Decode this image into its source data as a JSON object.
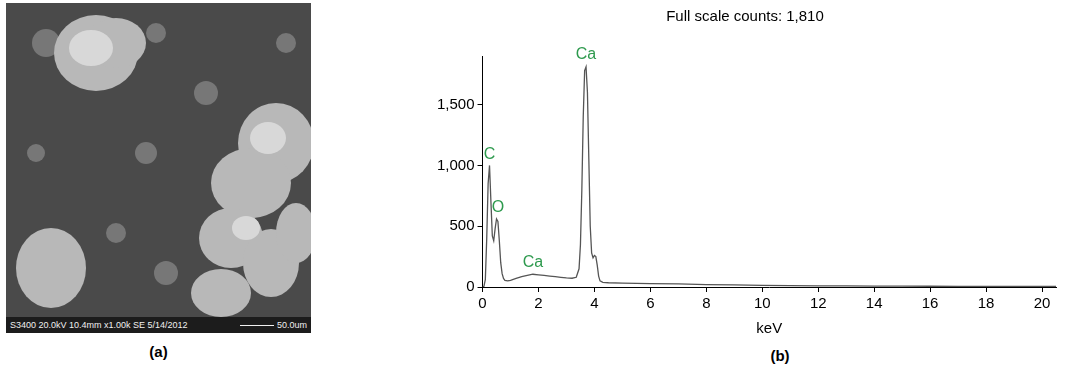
{
  "image": {
    "caption": "S3400 20.0kV 10.4mm x1.00k SE 5/14/2012",
    "scale_bar": "50.0um",
    "panel_label": "(a)"
  },
  "chart_data": {
    "type": "line",
    "title": "Full scale counts: 1,810",
    "x_label": "keV",
    "panel_label": "(b)",
    "x": [
      0,
      0.05,
      0.1,
      0.15,
      0.2,
      0.25,
      0.3,
      0.35,
      0.4,
      0.45,
      0.5,
      0.55,
      0.6,
      0.65,
      0.7,
      0.75,
      0.8,
      0.9,
      1.0,
      1.2,
      1.4,
      1.6,
      1.8,
      2.0,
      2.2,
      2.4,
      2.6,
      2.8,
      3.0,
      3.2,
      3.35,
      3.45,
      3.5,
      3.55,
      3.6,
      3.65,
      3.7,
      3.75,
      3.8,
      3.85,
      3.9,
      3.95,
      4.0,
      4.05,
      4.1,
      4.15,
      4.2,
      4.3,
      4.5,
      5,
      6,
      7,
      8,
      9,
      10,
      11,
      12,
      13,
      14,
      15,
      16,
      17,
      18,
      19,
      20,
      20.5
    ],
    "values": [
      0,
      5,
      60,
      400,
      850,
      1000,
      700,
      420,
      380,
      480,
      560,
      540,
      380,
      200,
      110,
      70,
      55,
      50,
      55,
      70,
      85,
      95,
      105,
      100,
      95,
      90,
      85,
      80,
      75,
      72,
      80,
      150,
      350,
      800,
      1400,
      1780,
      1810,
      1600,
      1050,
      500,
      280,
      240,
      260,
      250,
      180,
      90,
      50,
      38,
      35,
      32,
      28,
      25,
      20,
      17,
      14,
      12,
      10,
      9,
      8,
      7,
      6,
      5,
      5,
      4,
      4,
      4
    ],
    "color": "#555555",
    "xlim": [
      0,
      20.5
    ],
    "xticks": [
      0,
      2,
      4,
      6,
      8,
      10,
      12,
      14,
      16,
      18,
      20
    ],
    "ylim": [
      0,
      1900
    ],
    "yticks": [
      0,
      500,
      {
        "value": 1000,
        "label": "1,000"
      },
      {
        "value": 1500,
        "label": "1,500"
      }
    ],
    "grid": false,
    "annotations": [
      {
        "text": "C",
        "x": 0.25,
        "y": 1010,
        "color": "#2e9a4e"
      },
      {
        "text": "O",
        "x": 0.55,
        "y": 570,
        "color": "#2e9a4e"
      },
      {
        "text": "Ca",
        "x": 1.8,
        "y": 115,
        "color": "#2e9a4e"
      },
      {
        "text": "Ca",
        "x": 3.7,
        "y": 1830,
        "color": "#2e9a4e"
      }
    ]
  }
}
